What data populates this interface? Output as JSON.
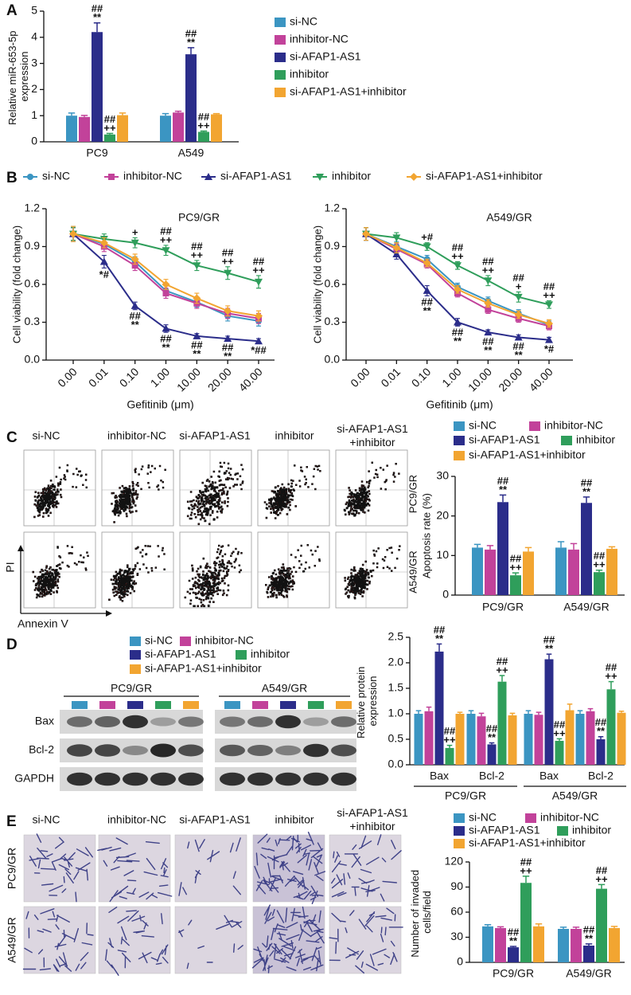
{
  "chart_data": [
    {
      "type": "bar",
      "panel_label": "A",
      "y_label": "Relative miR-653-5p expression",
      "categories": [
        "PC9",
        "A549"
      ],
      "ylim": [
        0,
        5
      ],
      "yticks": [
        0,
        1,
        2,
        3,
        4,
        5
      ],
      "series": [
        {
          "name": "si-NC",
          "color": "#3b95c2",
          "values": [
            1.0,
            1.0
          ],
          "errors": [
            0.1,
            0.08
          ]
        },
        {
          "name": "inhibitor-NC",
          "color": "#c2429a",
          "values": [
            0.95,
            1.12
          ],
          "errors": [
            0.06,
            0.05
          ]
        },
        {
          "name": "si-AFAP1-AS1",
          "color": "#2b2d8a",
          "values": [
            4.2,
            3.35
          ],
          "errors": [
            0.35,
            0.25
          ],
          "sig": [
            [
              "##",
              "**"
            ],
            [
              "##",
              "**"
            ]
          ]
        },
        {
          "name": "inhibitor",
          "color": "#2f9e5b",
          "values": [
            0.28,
            0.38
          ],
          "errors": [
            0.04,
            0.03
          ],
          "sig": [
            [
              "##",
              "++"
            ],
            [
              "##",
              "++"
            ]
          ]
        },
        {
          "name": "si-AFAP1-AS1+inhibitor",
          "color": "#f2a531",
          "values": [
            1.02,
            1.05
          ],
          "errors": [
            0.08,
            0.03
          ]
        }
      ]
    },
    {
      "type": "line",
      "panel_label": "B",
      "x_label": "Gefitinib (μm)",
      "y_label": "Cell viability (fold change)",
      "categories": [
        "0.00",
        "0.01",
        "0.10",
        "1.00",
        "10.00",
        "20.00",
        "40.00"
      ],
      "ylim": [
        0,
        1.2
      ],
      "yticks": [
        {
          "value": 0,
          "label": "0.0"
        },
        0.3,
        0.6,
        0.9,
        1.2
      ],
      "legend": [
        {
          "name": "si-NC",
          "color": "#3b95c2",
          "marker": "circle"
        },
        {
          "name": "inhibitor-NC",
          "color": "#c2429a",
          "marker": "square"
        },
        {
          "name": "si-AFAP1-AS1",
          "color": "#2b2d8a",
          "marker": "triangle"
        },
        {
          "name": "inhibitor",
          "color": "#2f9e5b",
          "marker": "triangle-down"
        },
        {
          "name": "si-AFAP1-AS1+inhibitor",
          "color": "#f2a531",
          "marker": "diamond"
        }
      ],
      "panels": [
        {
          "title": "PC9/GR",
          "series": [
            {
              "values": [
                1.0,
                0.92,
                0.78,
                0.55,
                0.46,
                0.35,
                0.31
              ],
              "errors": [
                0.06,
                0.04,
                0.04,
                0.04,
                0.04,
                0.04,
                0.04
              ]
            },
            {
              "values": [
                1.0,
                0.9,
                0.75,
                0.53,
                0.45,
                0.37,
                0.33
              ],
              "errors": [
                0.05,
                0.04,
                0.04,
                0.04,
                0.04,
                0.04,
                0.04
              ]
            },
            {
              "values": [
                1.0,
                0.78,
                0.43,
                0.25,
                0.19,
                0.17,
                0.15
              ],
              "errors": [
                0.05,
                0.05,
                0.03,
                0.03,
                0.02,
                0.02,
                0.02
              ],
              "sig": [
                null,
                [
                  "*#"
                ],
                [
                  "##",
                  "**"
                ],
                [
                  "##",
                  "**"
                ],
                [
                  "##",
                  "**"
                ],
                [
                  "##",
                  "**"
                ],
                [
                  "*##"
                ]
              ]
            },
            {
              "values": [
                1.0,
                0.96,
                0.93,
                0.87,
                0.75,
                0.69,
                0.62
              ],
              "errors": [
                0.05,
                0.04,
                0.04,
                0.04,
                0.04,
                0.05,
                0.05
              ],
              "sig": [
                null,
                null,
                [
                  "+"
                ],
                [
                  "##",
                  "++"
                ],
                [
                  "##",
                  "++"
                ],
                [
                  "##",
                  "++"
                ],
                [
                  "##",
                  "++"
                ]
              ]
            },
            {
              "values": [
                1.0,
                0.93,
                0.8,
                0.6,
                0.49,
                0.39,
                0.35
              ],
              "errors": [
                0.06,
                0.04,
                0.04,
                0.04,
                0.04,
                0.04,
                0.04
              ]
            }
          ]
        },
        {
          "title": "A549/GR",
          "series": [
            {
              "values": [
                1.0,
                0.9,
                0.8,
                0.58,
                0.47,
                0.37,
                0.28
              ],
              "errors": [
                0.05,
                0.04,
                0.03,
                0.03,
                0.03,
                0.03,
                0.03
              ]
            },
            {
              "values": [
                1.0,
                0.88,
                0.76,
                0.53,
                0.4,
                0.33,
                0.27
              ],
              "errors": [
                0.05,
                0.04,
                0.03,
                0.03,
                0.03,
                0.03,
                0.03
              ]
            },
            {
              "values": [
                1.0,
                0.84,
                0.55,
                0.3,
                0.22,
                0.18,
                0.16
              ],
              "errors": [
                0.05,
                0.04,
                0.04,
                0.03,
                0.02,
                0.02,
                0.02
              ],
              "sig": [
                null,
                null,
                [
                  "##",
                  "**"
                ],
                [
                  "##",
                  "**"
                ],
                [
                  "##",
                  "**"
                ],
                [
                  "##",
                  "**"
                ],
                [
                  "*#"
                ]
              ]
            },
            {
              "values": [
                1.0,
                0.97,
                0.9,
                0.75,
                0.63,
                0.5,
                0.44
              ],
              "errors": [
                0.05,
                0.04,
                0.03,
                0.03,
                0.04,
                0.04,
                0.03
              ],
              "sig": [
                null,
                null,
                [
                  "+#"
                ],
                [
                  "##",
                  "++"
                ],
                [
                  "##",
                  "++"
                ],
                [
                  "##",
                  "+"
                ],
                [
                  "##",
                  "++"
                ]
              ]
            },
            {
              "values": [
                1.0,
                0.89,
                0.77,
                0.56,
                0.45,
                0.36,
                0.29
              ],
              "errors": [
                0.05,
                0.04,
                0.03,
                0.03,
                0.03,
                0.03,
                0.03
              ]
            }
          ]
        }
      ]
    },
    {
      "type": "bar",
      "panel_label": "C",
      "y_label": "Apoptosis rate (%)",
      "row_labels": [
        "PC9/GR",
        "A549/GR"
      ],
      "categories": [
        "PC9/GR",
        "A549/GR"
      ],
      "ylim": [
        0,
        30
      ],
      "yticks": [
        0,
        10,
        20,
        30
      ],
      "series": [
        {
          "name": "si-NC",
          "color": "#3b95c2",
          "values": [
            12,
            12
          ],
          "errors": [
            0.8,
            1.5
          ]
        },
        {
          "name": "inhibitor-NC",
          "color": "#c2429a",
          "values": [
            11.5,
            11.5
          ],
          "errors": [
            1,
            1.5
          ]
        },
        {
          "name": "si-AFAP1-AS1",
          "color": "#2b2d8a",
          "values": [
            23.5,
            23.3
          ],
          "errors": [
            1.8,
            1.5
          ],
          "sig": [
            [
              "##",
              "**"
            ],
            [
              "##",
              "**"
            ]
          ]
        },
        {
          "name": "inhibitor",
          "color": "#2f9e5b",
          "values": [
            5,
            5.8
          ],
          "errors": [
            0.6,
            0.5
          ],
          "sig": [
            [
              "##",
              "++"
            ],
            [
              "##",
              "++"
            ]
          ]
        },
        {
          "name": "si-AFAP1-AS1+inhibitor",
          "color": "#f2a531",
          "values": [
            11,
            11.7
          ],
          "errors": [
            1,
            0.5
          ]
        }
      ]
    },
    {
      "type": "bar",
      "panel_label": "D",
      "y_label": "Relative protein expression",
      "categories": [
        "Bax",
        "Bcl-2",
        "Bax",
        "Bcl-2"
      ],
      "groups": [
        "PC9/GR",
        "A549/GR"
      ],
      "ylim": [
        0,
        2.5
      ],
      "yticks": [
        {
          "value": 0,
          "label": "0.0"
        },
        0.5,
        {
          "value": 1,
          "label": "1.0"
        },
        1.5,
        {
          "value": 2,
          "label": "2.0"
        },
        2.5
      ],
      "series": [
        {
          "name": "si-NC",
          "color": "#3b95c2",
          "values": [
            1.0,
            1.0,
            1.0,
            1.0
          ],
          "errors": [
            0.06,
            0.06,
            0.06,
            0.06
          ]
        },
        {
          "name": "inhibitor-NC",
          "color": "#c2429a",
          "values": [
            1.05,
            0.95,
            0.98,
            1.05
          ],
          "errors": [
            0.08,
            0.06,
            0.05,
            0.05
          ]
        },
        {
          "name": "si-AFAP1-AS1",
          "color": "#2b2d8a",
          "values": [
            2.22,
            0.4,
            2.07,
            0.5
          ],
          "errors": [
            0.15,
            0.03,
            0.1,
            0.05
          ],
          "sig": [
            [
              "##",
              "**"
            ],
            [
              "##",
              "**"
            ],
            [
              "##",
              "**"
            ],
            [
              "##",
              "**"
            ]
          ]
        },
        {
          "name": "inhibitor",
          "color": "#2f9e5b",
          "values": [
            0.33,
            1.63,
            0.47,
            1.48
          ],
          "errors": [
            0.05,
            0.12,
            0.04,
            0.15
          ],
          "sig": [
            [
              "##",
              "++"
            ],
            [
              "##",
              "++"
            ],
            [
              "##",
              "++"
            ],
            [
              "##",
              "++"
            ]
          ]
        },
        {
          "name": "si-AFAP1-AS1+inhibitor",
          "color": "#f2a531",
          "values": [
            1.0,
            0.97,
            1.07,
            1.02
          ],
          "errors": [
            0.03,
            0.04,
            0.12,
            0.03
          ]
        }
      ]
    },
    {
      "type": "bar",
      "panel_label": "E",
      "y_label": "Number of invaded cells/field",
      "categories": [
        "PC9/GR",
        "A549/GR"
      ],
      "ylim": [
        0,
        120
      ],
      "yticks": [
        0,
        30,
        60,
        90,
        120
      ],
      "series": [
        {
          "name": "si-NC",
          "color": "#3b95c2",
          "values": [
            43,
            40
          ],
          "errors": [
            2,
            2
          ]
        },
        {
          "name": "inhibitor-NC",
          "color": "#c2429a",
          "values": [
            41,
            40
          ],
          "errors": [
            1.5,
            2
          ]
        },
        {
          "name": "si-AFAP1-AS1",
          "color": "#2b2d8a",
          "values": [
            18,
            20
          ],
          "errors": [
            1,
            2
          ],
          "sig": [
            [
              "##",
              "**"
            ],
            [
              "##",
              "**"
            ]
          ]
        },
        {
          "name": "inhibitor",
          "color": "#2f9e5b",
          "values": [
            95,
            88
          ],
          "errors": [
            8,
            5
          ],
          "sig": [
            [
              "##",
              "++"
            ],
            [
              "##",
              "++"
            ]
          ]
        },
        {
          "name": "si-AFAP1-AS1+inhibitor",
          "color": "#f2a531",
          "values": [
            43,
            41
          ],
          "errors": [
            3,
            2
          ]
        }
      ]
    }
  ],
  "images": {
    "C": {
      "columns": [
        [
          "si-NC"
        ],
        [
          "inhibitor-NC"
        ],
        [
          "si-AFAP1-AS1"
        ],
        [
          "inhibitor"
        ],
        [
          "si-AFAP1-AS1",
          "+inhibitor"
        ]
      ],
      "y_axis": "PI",
      "x_axis": "Annexin V"
    },
    "D": {
      "groups": [
        "PC9/GR",
        "A549/GR"
      ],
      "rows": [
        "Bax",
        "Bcl-2",
        "GAPDH"
      ]
    },
    "E": {
      "columns": [
        [
          "si-NC"
        ],
        [
          "inhibitor-NC"
        ],
        [
          "si-AFAP1-AS1"
        ],
        [
          "inhibitor"
        ],
        [
          "si-AFAP1-AS1",
          "+inhibitor"
        ]
      ],
      "rows": [
        "PC9/GR",
        "A549/GR"
      ]
    }
  }
}
